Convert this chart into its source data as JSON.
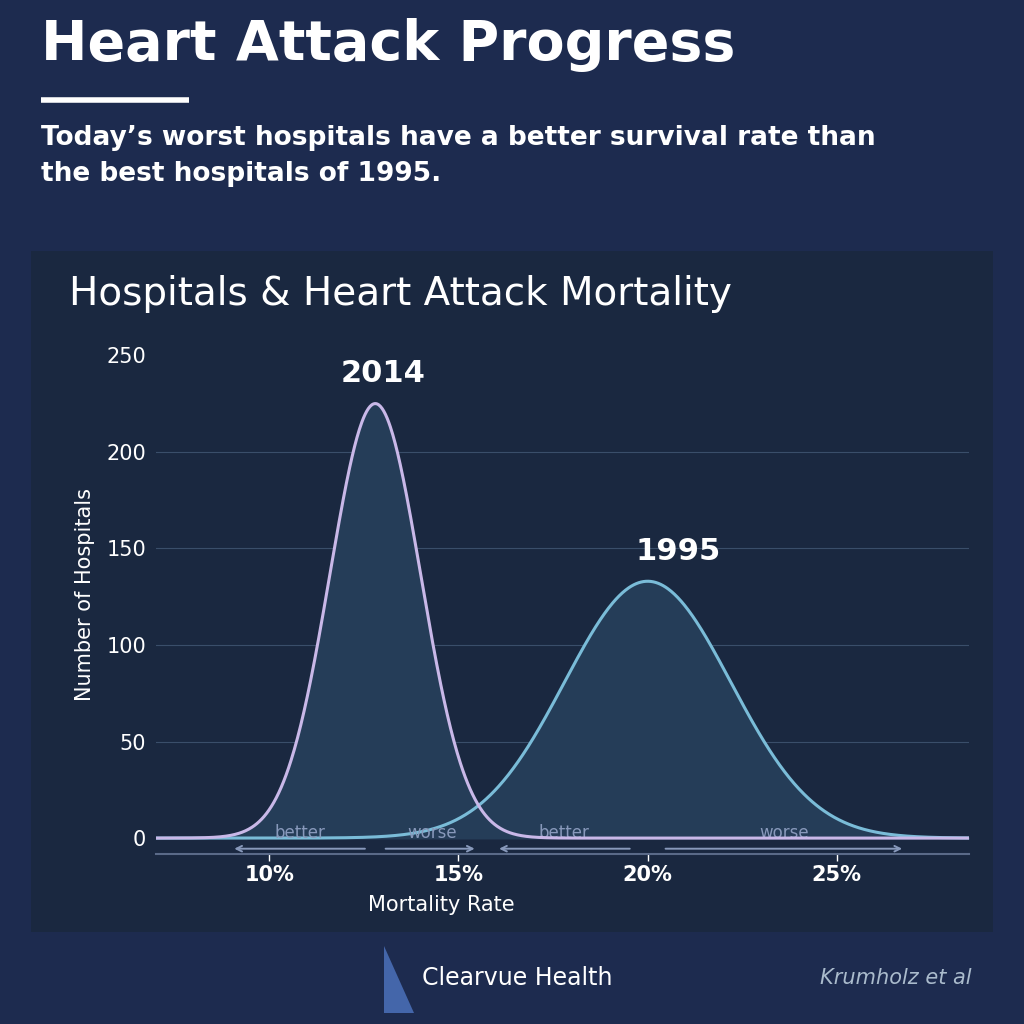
{
  "title": "Heart Attack Progress",
  "subtitle": "Today’s worst hospitals have a better survival rate than\nthe best hospitals of 1995.",
  "chart_title": "Hospitals & Heart Attack Mortality",
  "xlabel": "Mortality Rate",
  "ylabel": "Number of Hospitals",
  "bg_color_outer": "#1d2b4f",
  "bg_color_inner": "#1a2840",
  "curve_2014_mean": 0.128,
  "curve_2014_std": 0.012,
  "curve_2014_peak": 225,
  "curve_1995_mean": 0.2,
  "curve_1995_std": 0.022,
  "curve_1995_peak": 133,
  "curve_2014_color_fill": "#253d58",
  "curve_2014_color_line": "#c9b8e8",
  "curve_1995_color_fill": "#253d58",
  "curve_1995_color_line": "#7abcd8",
  "text_color": "#ffffff",
  "annotation_color": "#8899bb",
  "xlim": [
    0.07,
    0.285
  ],
  "ylim": [
    -8,
    260
  ],
  "xticks": [
    0.1,
    0.15,
    0.2,
    0.25
  ],
  "xtick_labels": [
    "10%",
    "15%",
    "20%",
    "25%"
  ],
  "yticks": [
    0,
    50,
    100,
    150,
    200,
    250
  ],
  "footer_text_left": "Clearvue Health",
  "footer_text_right": "Krumholz et al",
  "title_fontsize": 40,
  "subtitle_fontsize": 19,
  "chart_title_fontsize": 28,
  "axis_label_fontsize": 15,
  "tick_fontsize": 15,
  "year_label_fontsize": 22,
  "arrow_annotation_fontsize": 12
}
